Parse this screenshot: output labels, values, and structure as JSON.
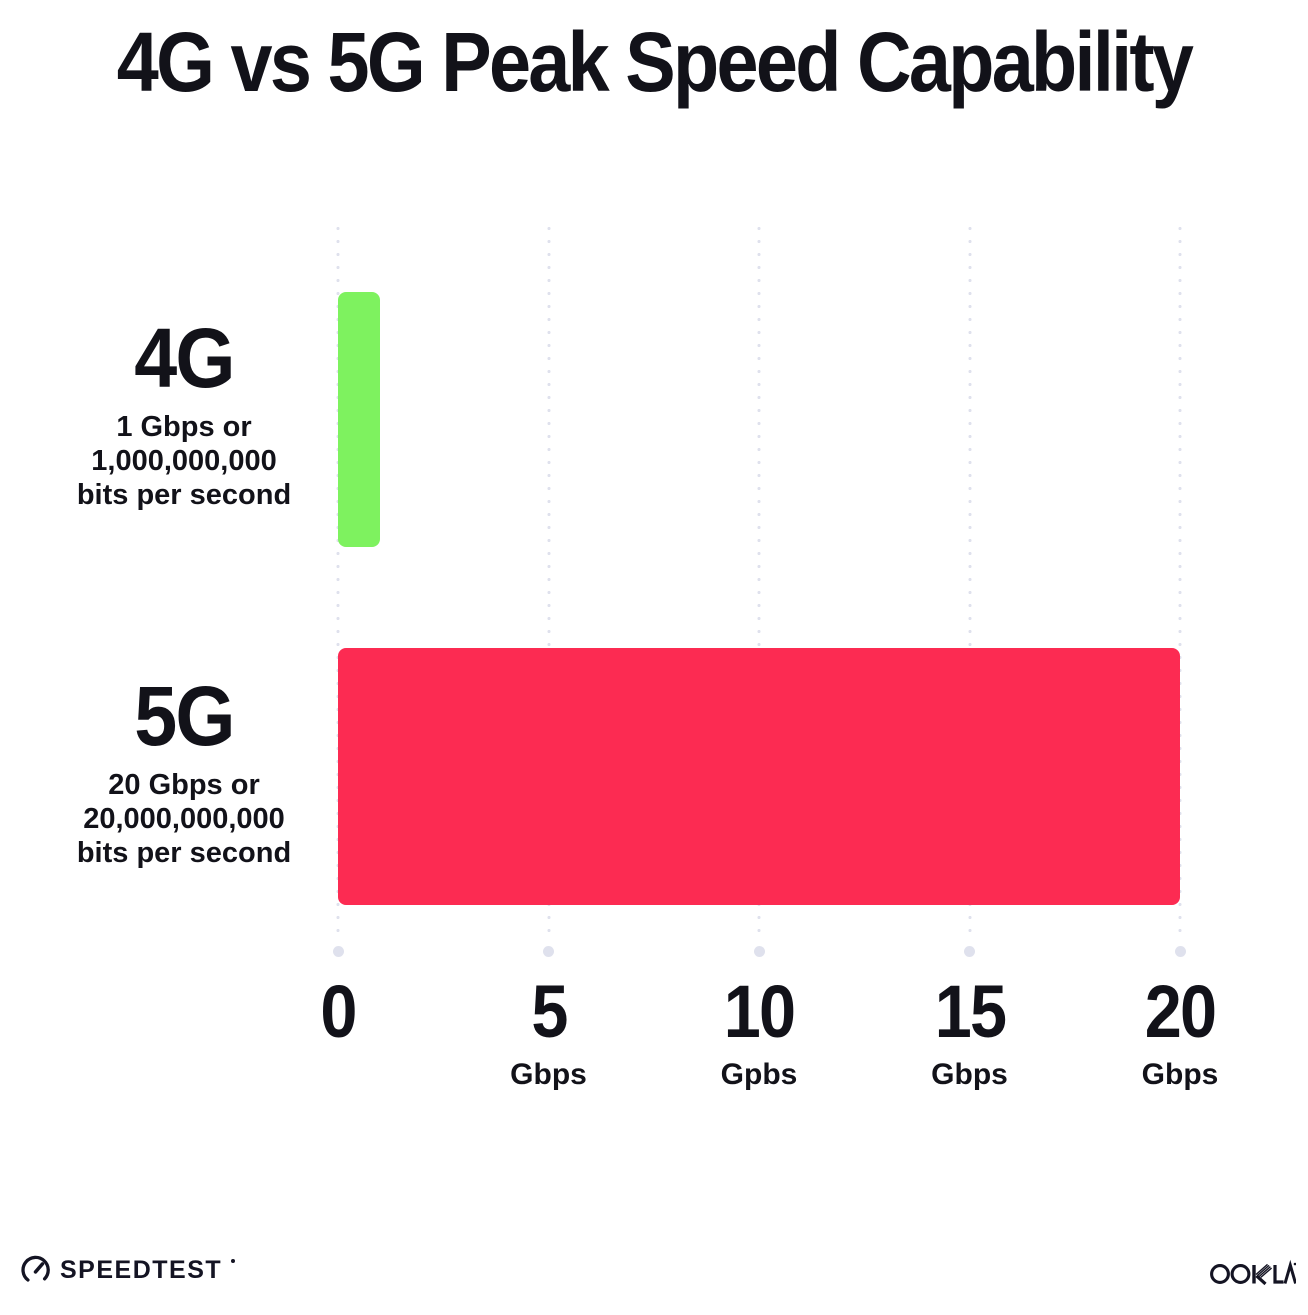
{
  "title": "4G vs 5G Peak Speed Capability",
  "chart_data": {
    "type": "bar",
    "orientation": "horizontal",
    "title": "4G vs 5G Peak Speed Capability",
    "categories": [
      "4G",
      "5G"
    ],
    "values": [
      1,
      20
    ],
    "value_unit": "Gbps",
    "category_descriptions": [
      [
        "1 Gbps or",
        "1,000,000,000",
        "bits per second"
      ],
      [
        "20 Gbps or",
        "20,000,000,000",
        "bits per second"
      ]
    ],
    "bar_colors": [
      "#7ef25f",
      "#fc2b52"
    ],
    "xlim": [
      0,
      20
    ],
    "x_tick_values": [
      0,
      5,
      10,
      15,
      20
    ],
    "x_ticks": [
      {
        "number": "0",
        "unit": ""
      },
      {
        "number": "5",
        "unit": "Gbps"
      },
      {
        "number": "10",
        "unit": "Gpbs"
      },
      {
        "number": "15",
        "unit": "Gbps"
      },
      {
        "number": "20",
        "unit": "Gbps"
      }
    ],
    "grid": "vertical-dotted",
    "gridline_color": "#dfe1ed",
    "legend": "none",
    "background": "#ffffff"
  },
  "footer": {
    "speedtest_label": "SPEEDTEST",
    "ookla_label": "OOKLA"
  }
}
